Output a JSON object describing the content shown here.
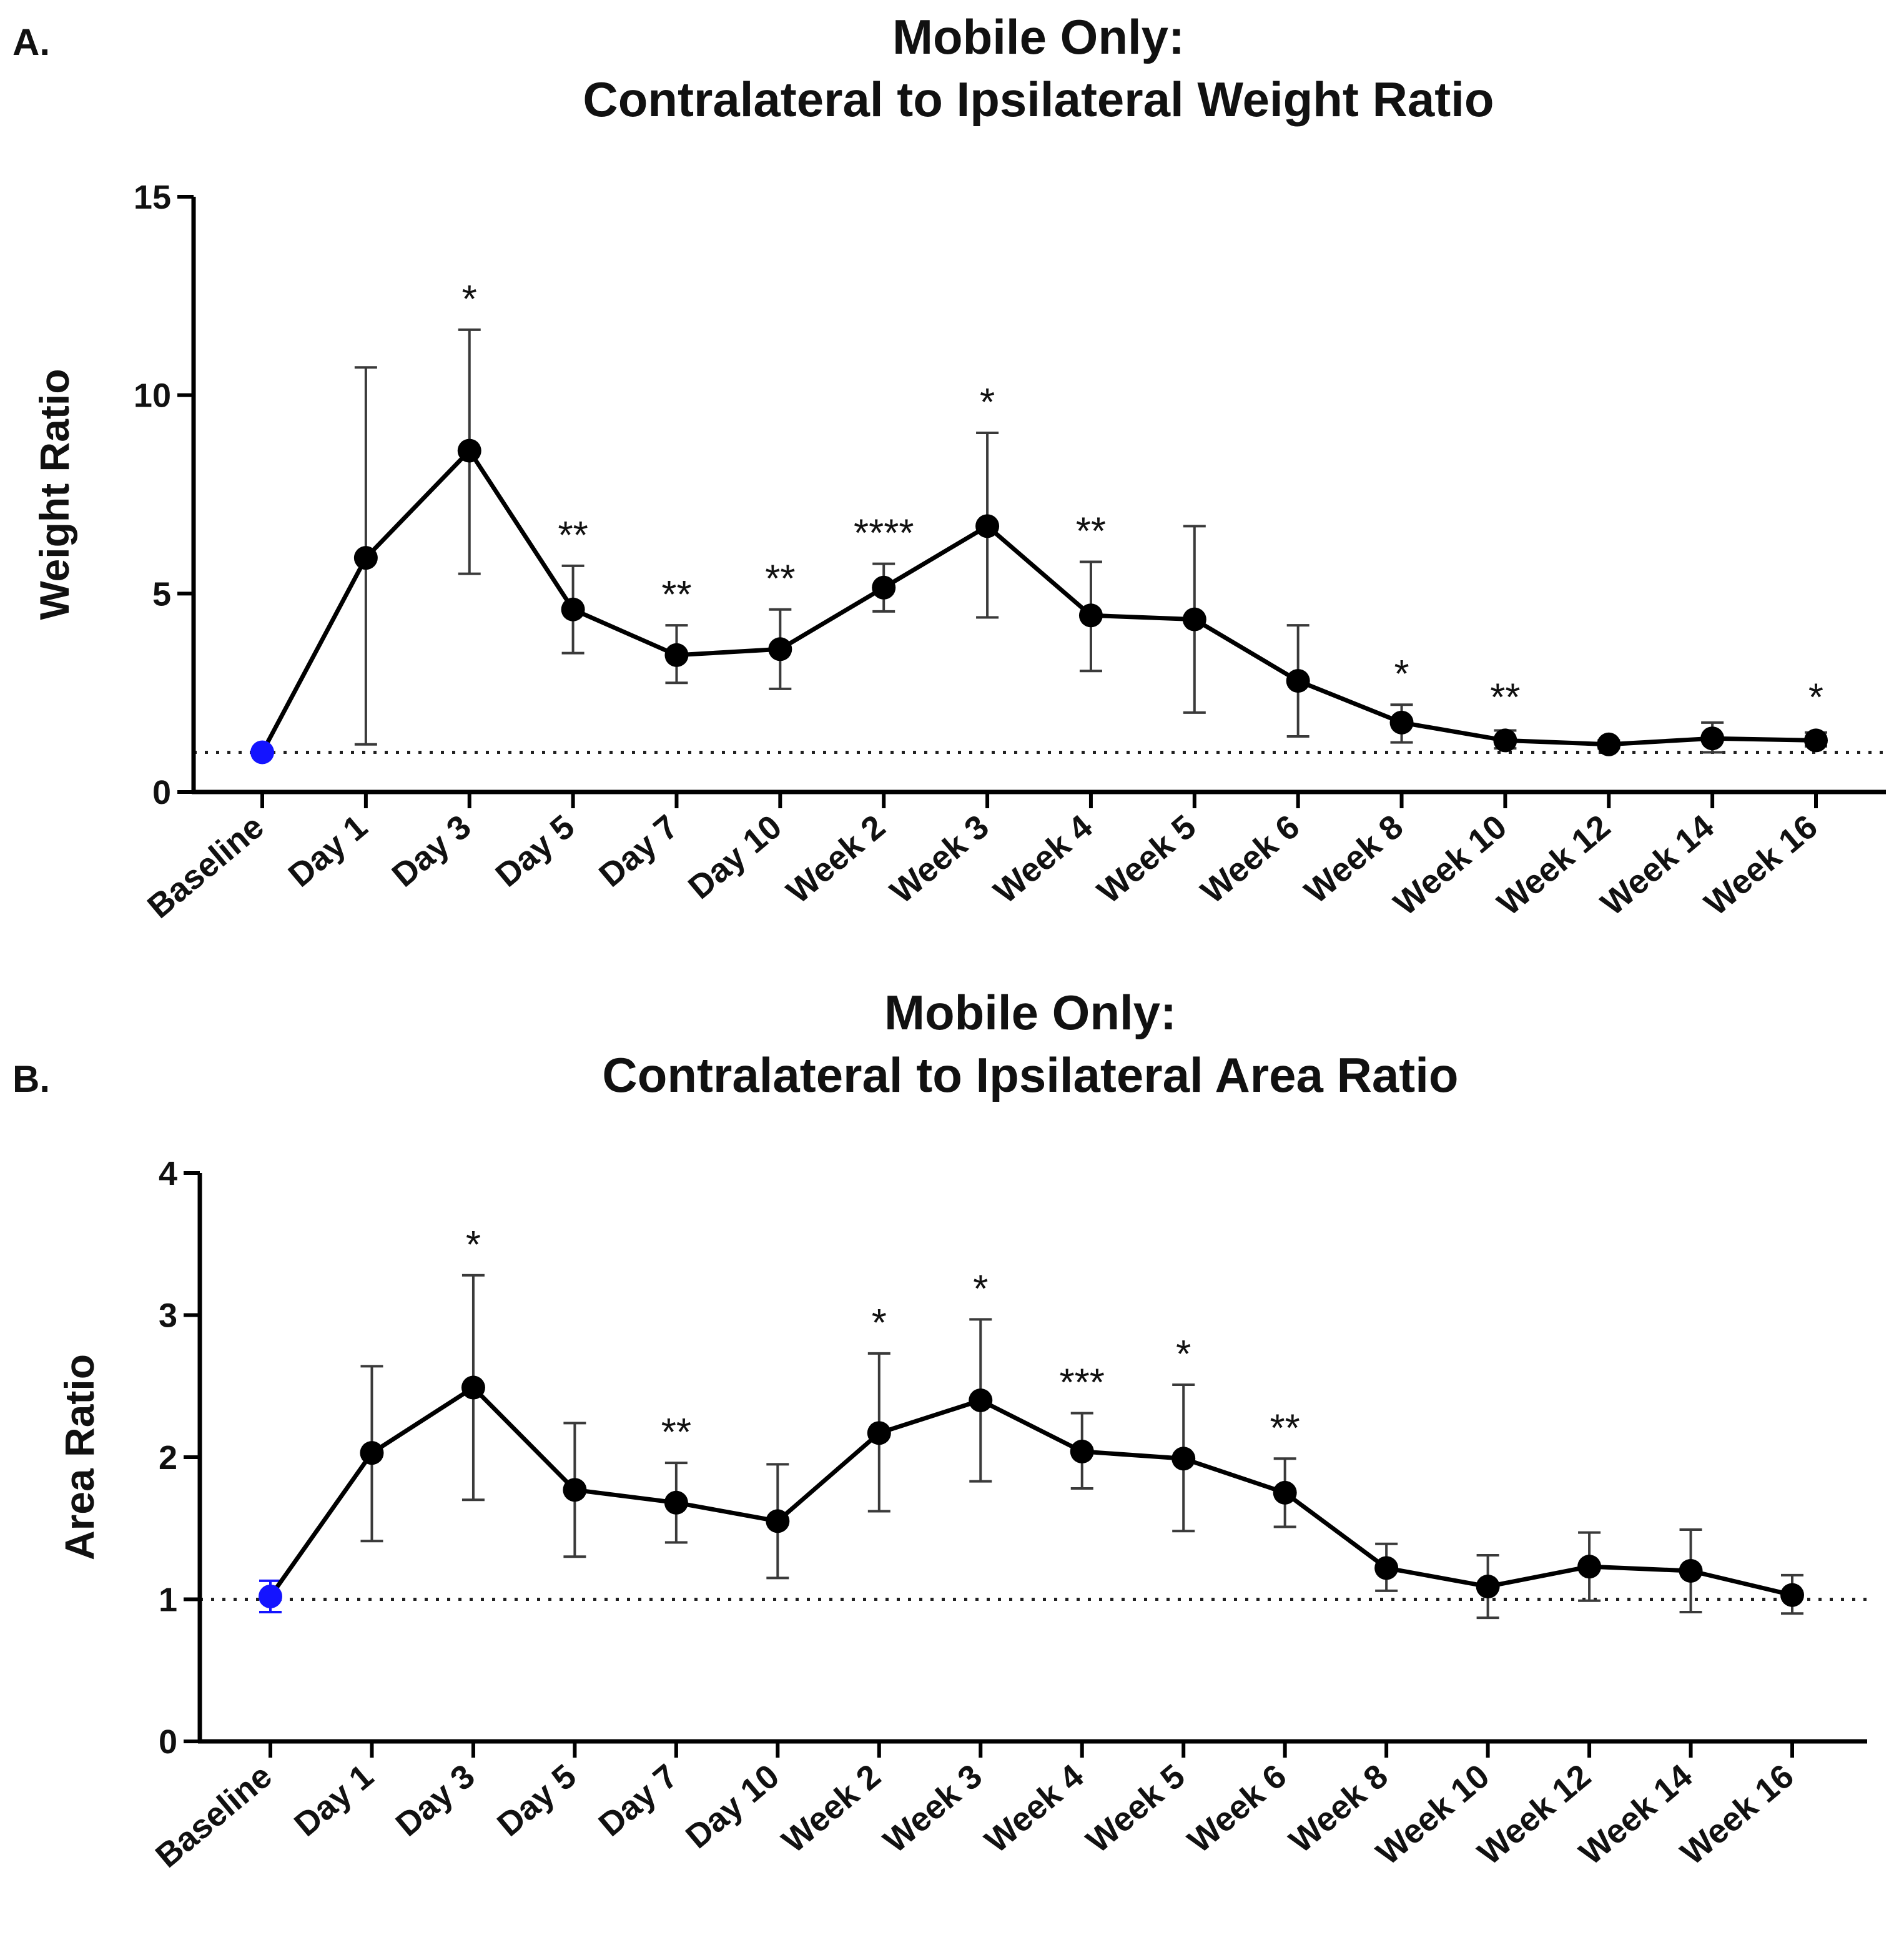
{
  "chart_data": [
    {
      "type": "line",
      "panel_label": "A.",
      "title_lines": [
        "Mobile Only:",
        "Contralateral to Ipsilateral Weight Ratio"
      ],
      "xlabel": "",
      "ylabel": "Weight Ratio",
      "ylim": [
        0,
        15
      ],
      "yticks": [
        0,
        5,
        10,
        15
      ],
      "reference_line": 1,
      "categories": [
        "Baseline",
        "Day 1",
        "Day 3",
        "Day 5",
        "Day 7",
        "Day 10",
        "Week 2",
        "Week 3",
        "Week 4",
        "Week 5",
        "Week 6",
        "Week 8",
        "Week 10",
        "Week 12",
        "Week 14",
        "Week 16"
      ],
      "series": [
        {
          "name": "Weight Ratio",
          "values": [
            1.0,
            5.9,
            8.6,
            4.6,
            3.45,
            3.6,
            5.15,
            6.7,
            4.45,
            4.35,
            2.8,
            1.75,
            1.3,
            1.2,
            1.35,
            1.3
          ],
          "err_low": [
            0.95,
            1.2,
            5.5,
            3.5,
            2.75,
            2.6,
            4.55,
            4.4,
            3.05,
            2.0,
            1.4,
            1.25,
            1.1,
            1.1,
            1.0,
            1.15
          ],
          "err_high": [
            1.05,
            10.7,
            11.65,
            5.7,
            4.2,
            4.6,
            5.75,
            9.05,
            5.8,
            6.7,
            4.2,
            2.2,
            1.55,
            1.3,
            1.75,
            1.5
          ]
        }
      ],
      "annotations": [
        "",
        "",
        "*",
        "**",
        "**",
        "**",
        "****",
        "*",
        "**",
        "",
        "",
        "*",
        "**",
        "",
        "",
        "*"
      ],
      "colors": {
        "baseline_marker": "#1414ff",
        "line": "#000000",
        "error_bar": "#3a3a3a"
      }
    },
    {
      "type": "line",
      "panel_label": "B.",
      "title_lines": [
        "Mobile Only:",
        "Contralateral to Ipsilateral Area Ratio"
      ],
      "xlabel": "",
      "ylabel": "Area Ratio",
      "ylim": [
        0,
        4
      ],
      "yticks": [
        0,
        1,
        2,
        3,
        4
      ],
      "reference_line": 1,
      "categories": [
        "Baseline",
        "Day 1",
        "Day 3",
        "Day 5",
        "Day 7",
        "Day 10",
        "Week 2",
        "Week 3",
        "Week 4",
        "Week 5",
        "Week 6",
        "Week 8",
        "Week 10",
        "Week 12",
        "Week 14",
        "Week 16"
      ],
      "series": [
        {
          "name": "Area Ratio",
          "values": [
            1.02,
            2.03,
            2.49,
            1.77,
            1.68,
            1.55,
            2.17,
            2.4,
            2.04,
            1.99,
            1.75,
            1.22,
            1.09,
            1.23,
            1.2,
            1.03
          ],
          "err_low": [
            0.91,
            1.41,
            1.7,
            1.3,
            1.4,
            1.15,
            1.62,
            1.83,
            1.78,
            1.48,
            1.51,
            1.06,
            0.87,
            0.99,
            0.91,
            0.9
          ],
          "err_high": [
            1.13,
            2.64,
            3.28,
            2.24,
            1.96,
            1.95,
            2.73,
            2.97,
            2.31,
            2.51,
            1.99,
            1.39,
            1.31,
            1.47,
            1.49,
            1.17
          ]
        }
      ],
      "annotations": [
        "",
        "",
        "*",
        "",
        "**",
        "",
        "*",
        "*",
        "***",
        "*",
        "**",
        "",
        "",
        "",
        "",
        ""
      ],
      "colors": {
        "baseline_marker": "#1414ff",
        "line": "#000000",
        "error_bar": "#3a3a3a"
      }
    }
  ]
}
